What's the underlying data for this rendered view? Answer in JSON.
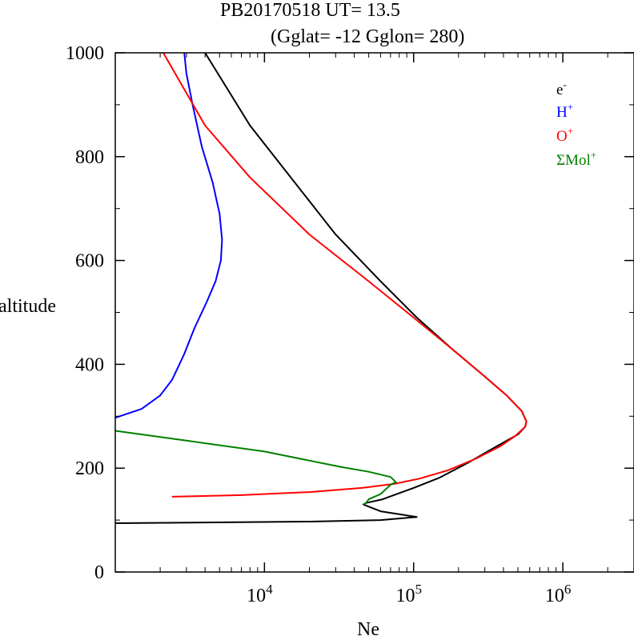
{
  "header": {
    "line1": "PB20170518   UT=  13.5",
    "line2": "(Gglat= -12   Gglon=  280)"
  },
  "chart_data": {
    "type": "line",
    "title": "PB20170518   UT=  13.5   (Gglat= -12   Gglon=  280)",
    "xlabel": "Ne",
    "ylabel": "altitude",
    "xscale": "log",
    "xlim": [
      1000,
      3000000
    ],
    "ylim": [
      0,
      1000
    ],
    "y_ticks": [
      0,
      200,
      400,
      600,
      800,
      1000
    ],
    "x_tick_exponents": [
      4,
      5,
      6
    ],
    "grid": false,
    "legend_position": "top-right",
    "series": [
      {
        "name": "e",
        "sup": "-",
        "color": "#000000",
        "points": [
          [
            1000,
            94
          ],
          [
            20000,
            97
          ],
          [
            60000,
            100
          ],
          [
            105000,
            106
          ],
          [
            60000,
            117
          ],
          [
            46000,
            130
          ],
          [
            48000,
            133
          ],
          [
            62000,
            140
          ],
          [
            80000,
            152
          ],
          [
            100000,
            162
          ],
          [
            150000,
            182
          ],
          [
            230000,
            210
          ],
          [
            350000,
            240
          ],
          [
            500000,
            265
          ],
          [
            560000,
            280
          ],
          [
            570000,
            290
          ],
          [
            530000,
            310
          ],
          [
            420000,
            340
          ],
          [
            290000,
            380
          ],
          [
            180000,
            430
          ],
          [
            105000,
            490
          ],
          [
            60000,
            560
          ],
          [
            30000,
            650
          ],
          [
            15000,
            760
          ],
          [
            8000,
            860
          ],
          [
            4000,
            1000
          ]
        ]
      },
      {
        "name": "H",
        "sup": "+",
        "color": "#0000ff",
        "points": [
          [
            1000,
            297
          ],
          [
            1500,
            314
          ],
          [
            2000,
            340
          ],
          [
            2400,
            370
          ],
          [
            2900,
            420
          ],
          [
            3400,
            470
          ],
          [
            4100,
            520
          ],
          [
            4700,
            560
          ],
          [
            5100,
            600
          ],
          [
            5200,
            640
          ],
          [
            5000,
            690
          ],
          [
            4500,
            750
          ],
          [
            3800,
            820
          ],
          [
            3300,
            900
          ],
          [
            3000,
            960
          ],
          [
            2900,
            1000
          ]
        ]
      },
      {
        "name": "O",
        "sup": "+",
        "color": "#ff0000",
        "points": [
          [
            2400,
            145
          ],
          [
            7000,
            148
          ],
          [
            20000,
            154
          ],
          [
            45000,
            162
          ],
          [
            75000,
            170
          ],
          [
            110000,
            180
          ],
          [
            170000,
            196
          ],
          [
            260000,
            218
          ],
          [
            380000,
            242
          ],
          [
            480000,
            262
          ],
          [
            560000,
            280
          ],
          [
            570000,
            290
          ],
          [
            530000,
            310
          ],
          [
            420000,
            340
          ],
          [
            290000,
            380
          ],
          [
            180000,
            430
          ],
          [
            100000,
            490
          ],
          [
            50000,
            560
          ],
          [
            20000,
            650
          ],
          [
            8000,
            760
          ],
          [
            4000,
            860
          ],
          [
            2100,
            1000
          ]
        ]
      },
      {
        "name": "ΣMol",
        "sup": "+",
        "color": "#008000",
        "points": [
          [
            1000,
            272
          ],
          [
            3000,
            253
          ],
          [
            10000,
            232
          ],
          [
            33000,
            202
          ],
          [
            50000,
            193
          ],
          [
            70000,
            183
          ],
          [
            76000,
            173
          ],
          [
            70000,
            168
          ],
          [
            60000,
            150
          ],
          [
            50000,
            140
          ],
          [
            48000,
            133
          ],
          [
            46000,
            130
          ]
        ]
      }
    ]
  }
}
